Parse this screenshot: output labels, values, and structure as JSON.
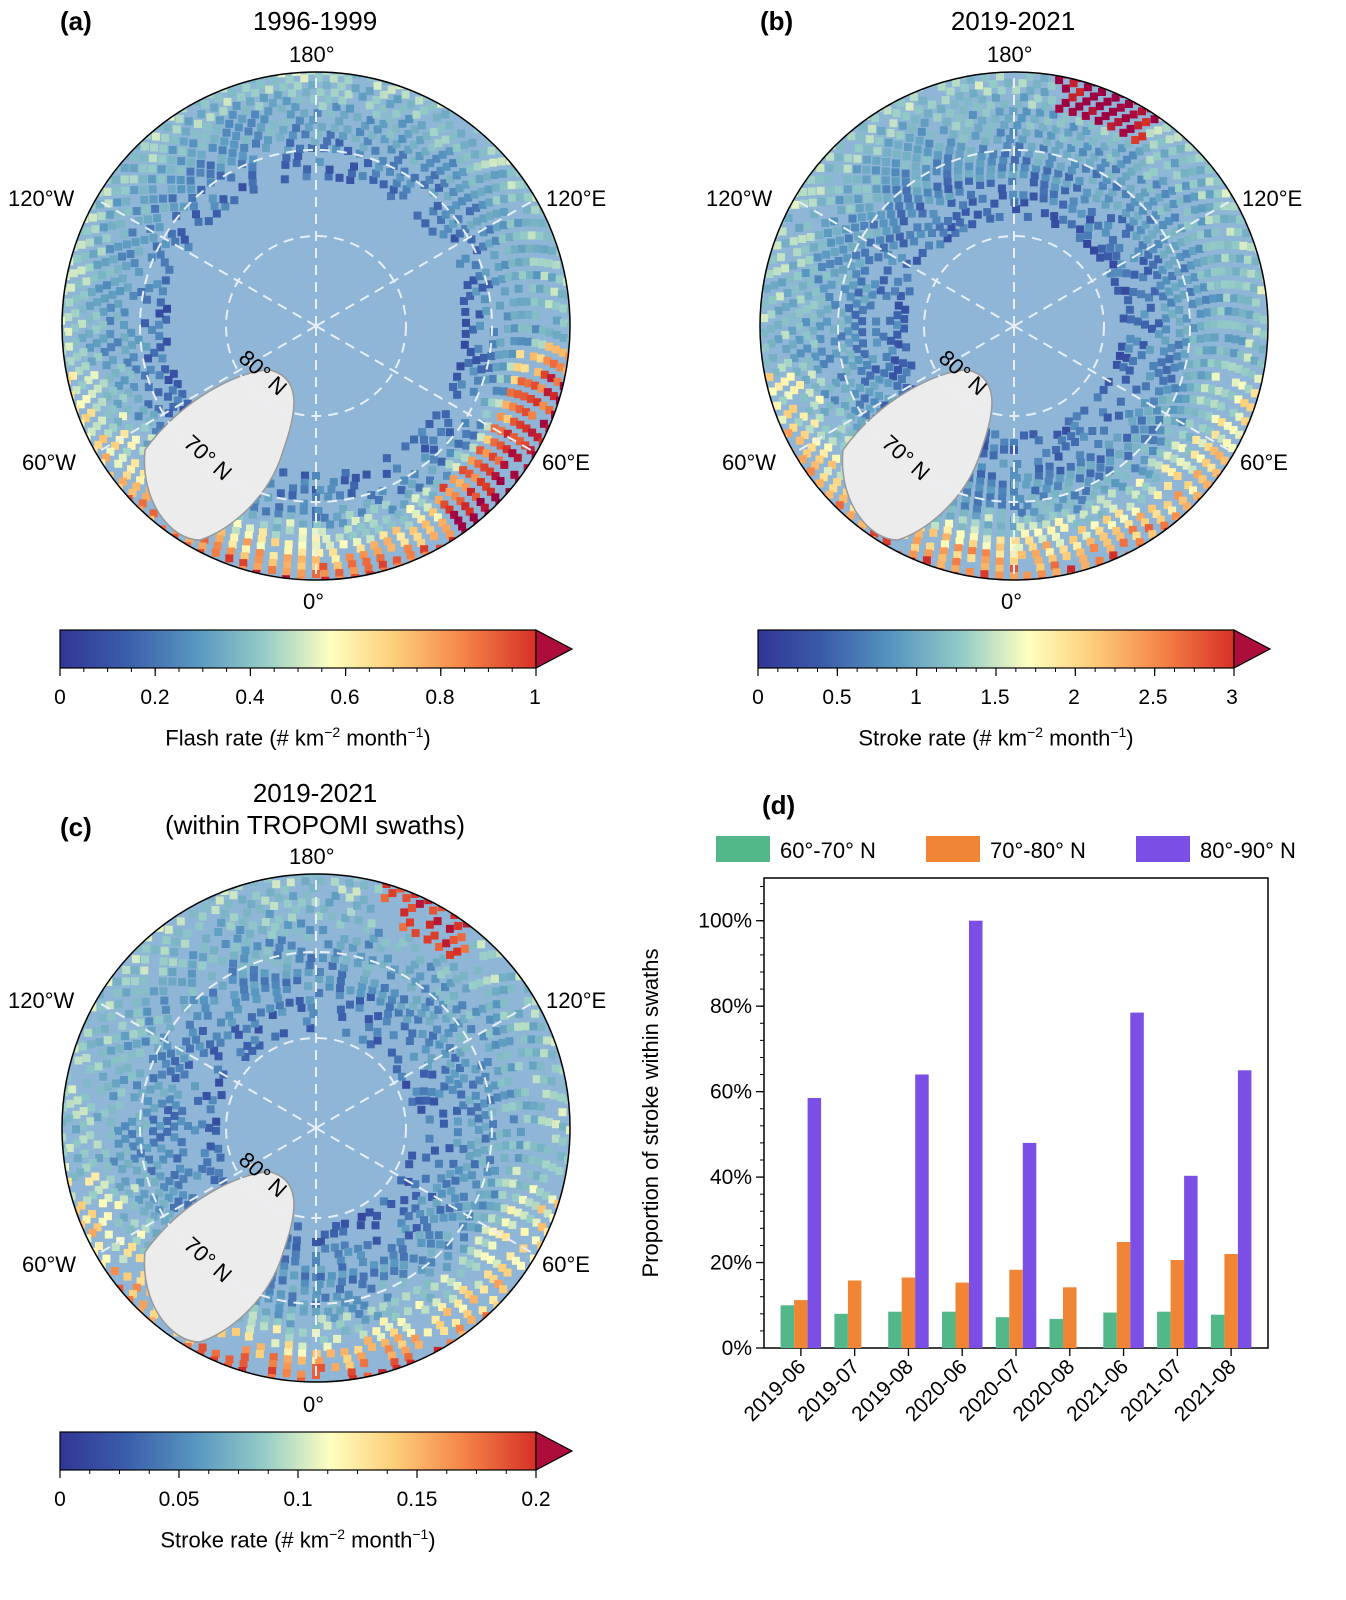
{
  "panels": {
    "a": {
      "label": "(a)",
      "title": "1996-1999",
      "longitudes": {
        "top": "180°",
        "bottom": "0°",
        "left_upper": "120°W",
        "right_upper": "120°E",
        "left_lower": "60°W",
        "right_lower": "60°E"
      },
      "latitudes": [
        "80° N",
        "70° N"
      ],
      "colorbar": {
        "ticks": [
          "0",
          "0.2",
          "0.4",
          "0.6",
          "0.8",
          "1"
        ],
        "range": [
          0,
          1
        ],
        "label_main": "Flash rate (# km",
        "label_exp1": "−2",
        "label_mid": " month",
        "label_exp2": "−1",
        "label_end": ")"
      }
    },
    "b": {
      "label": "(b)",
      "title": "2019-2021",
      "longitudes": {
        "top": "180°",
        "bottom": "0°",
        "left_upper": "120°W",
        "right_upper": "120°E",
        "left_lower": "60°W",
        "right_lower": "60°E"
      },
      "latitudes": [
        "80° N",
        "70° N"
      ],
      "colorbar": {
        "ticks": [
          "0",
          "0.5",
          "1",
          "1.5",
          "2",
          "2.5",
          "3"
        ],
        "range": [
          0,
          3
        ],
        "label_main": "Stroke rate (# km",
        "label_exp1": "−2",
        "label_mid": " month",
        "label_exp2": "−1",
        "label_end": ")"
      }
    },
    "c": {
      "label": "(c)",
      "title_line1": "2019-2021",
      "title_line2": "(within TROPOMI swaths)",
      "longitudes": {
        "top": "180°",
        "bottom": "0°",
        "left_upper": "120°W",
        "right_upper": "120°E",
        "left_lower": "60°W",
        "right_lower": "60°E"
      },
      "latitudes": [
        "80° N",
        "70° N"
      ],
      "colorbar": {
        "ticks": [
          "0",
          "0.05",
          "0.1",
          "0.15",
          "0.2"
        ],
        "range": [
          0,
          0.2
        ],
        "label_main": "Stroke rate (# km",
        "label_exp1": "−2",
        "label_mid": " month",
        "label_exp2": "−1",
        "label_end": ")"
      }
    },
    "d": {
      "label": "(d)"
    }
  },
  "colors": {
    "ocean": "#8fb6d6",
    "land_ice": "#ececec",
    "green": "#52b88a",
    "orange": "#f08535",
    "purple": "#7b4ee6"
  },
  "chart_data": {
    "type": "bar",
    "categories": [
      "2019-06",
      "2019-07",
      "2019-08",
      "2020-06",
      "2020-07",
      "2020-08",
      "2021-06",
      "2021-07",
      "2021-08"
    ],
    "series": [
      {
        "name": "60°-70° N",
        "color": "#52b88a",
        "values": [
          10,
          8,
          8.5,
          8.5,
          7.2,
          6.8,
          8.3,
          8.5,
          7.8
        ]
      },
      {
        "name": "70°-80° N",
        "color": "#f08535",
        "values": [
          11.2,
          15.8,
          16.5,
          15.3,
          18.3,
          14.2,
          24.8,
          20.6,
          22
        ]
      },
      {
        "name": "80°-90° N",
        "color": "#7b4ee6",
        "values": [
          58.5,
          null,
          64,
          100,
          48,
          null,
          78.5,
          40.3,
          65
        ]
      }
    ],
    "yticks": [
      "0%",
      "20%",
      "40%",
      "60%",
      "80%",
      "100%"
    ],
    "ylabel": "Proportion of stroke within swaths",
    "ylim": [
      0,
      110
    ],
    "legend_position": "top"
  }
}
